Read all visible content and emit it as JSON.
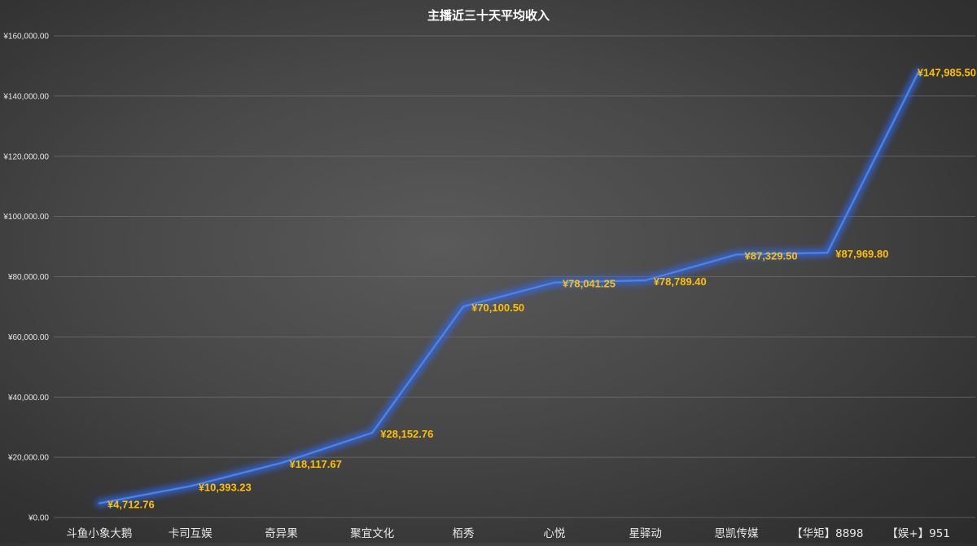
{
  "chart_data": {
    "type": "line",
    "title": "主播近三十天平均收入",
    "categories": [
      "斗鱼小象大鹅",
      "卡司互娱",
      "奇异果",
      "聚宜文化",
      "栢秀",
      "心悦",
      "星驿动",
      "思凯传媒",
      "【华矩】8898",
      "【娱+】951"
    ],
    "values": [
      4712.76,
      10393.23,
      18117.67,
      28152.76,
      70100.5,
      78041.25,
      78789.4,
      87329.5,
      87969.8,
      147985.5
    ],
    "data_labels": [
      "¥4,712.76",
      "¥10,393.23",
      "¥18,117.67",
      "¥28,152.76",
      "¥70,100.50",
      "¥78,041.25",
      "¥78,789.40",
      "¥87,329.50",
      "¥87,969.80",
      "¥147,985.50"
    ],
    "yticks": [
      0,
      20000,
      40000,
      60000,
      80000,
      100000,
      120000,
      140000,
      160000
    ],
    "ytick_labels": [
      "¥0.00",
      "¥20,000.00",
      "¥40,000.00",
      "¥60,000.00",
      "¥80,000.00",
      "¥100,000.00",
      "¥120,000.00",
      "¥140,000.00",
      "¥160,000.00"
    ],
    "ylim": [
      0,
      160000
    ],
    "xlabel": "",
    "ylabel": "",
    "grid": true,
    "legend": "none",
    "colors": {
      "line": "#4a86e8",
      "glow": "#2f6bff",
      "labels": "#ffc000",
      "grid": "#6e6e6e",
      "text": "#e6e6e6",
      "title": "#ffffff"
    }
  }
}
